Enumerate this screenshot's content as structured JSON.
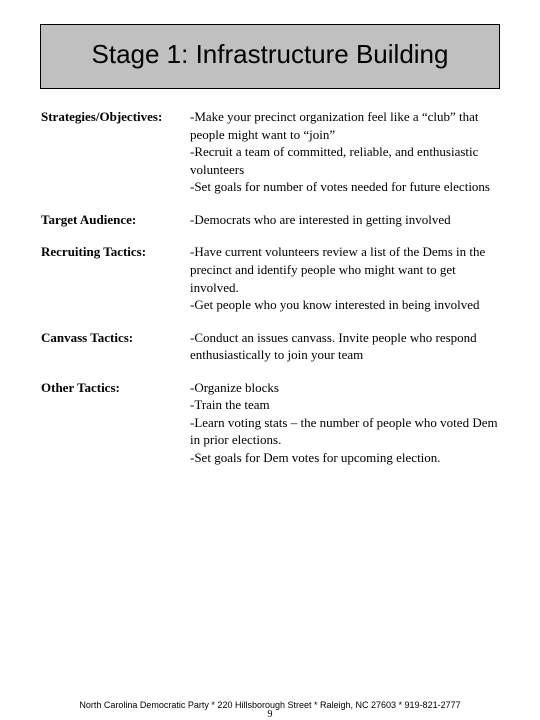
{
  "title": "Stage 1:  Infrastructure Building",
  "rows": [
    {
      "label": "Strategies/Objectives:",
      "value": "-Make your precinct organization feel like a “club” that people might want to “join”\n-Recruit a team of committed, reliable, and enthusiastic volunteers\n-Set goals for number of votes needed for future elections"
    },
    {
      "label": "Target Audience:",
      "value": "-Democrats who are interested in getting involved"
    },
    {
      "label": "Recruiting Tactics:",
      "value": "-Have current volunteers review a list of the Dems in the precinct and identify people who might want to get involved.\n-Get people who you know interested in being involved"
    },
    {
      "label": "Canvass Tactics:",
      "value": "-Conduct an issues canvass.  Invite people who respond enthusiastically to join your team"
    },
    {
      "label": "Other Tactics:",
      "value": "-Organize blocks\n-Train the team\n-Learn voting stats – the number of people who voted Dem in prior elections.\n-Set goals for Dem votes for upcoming election."
    }
  ],
  "footer": "North Carolina Democratic Party * 220 Hillsborough Street * Raleigh, NC 27603 * 919-821-2777",
  "page_number": "9",
  "colors": {
    "title_bg": "#c0c0c0",
    "border": "#000000",
    "text": "#000000",
    "page_bg": "#ffffff"
  }
}
